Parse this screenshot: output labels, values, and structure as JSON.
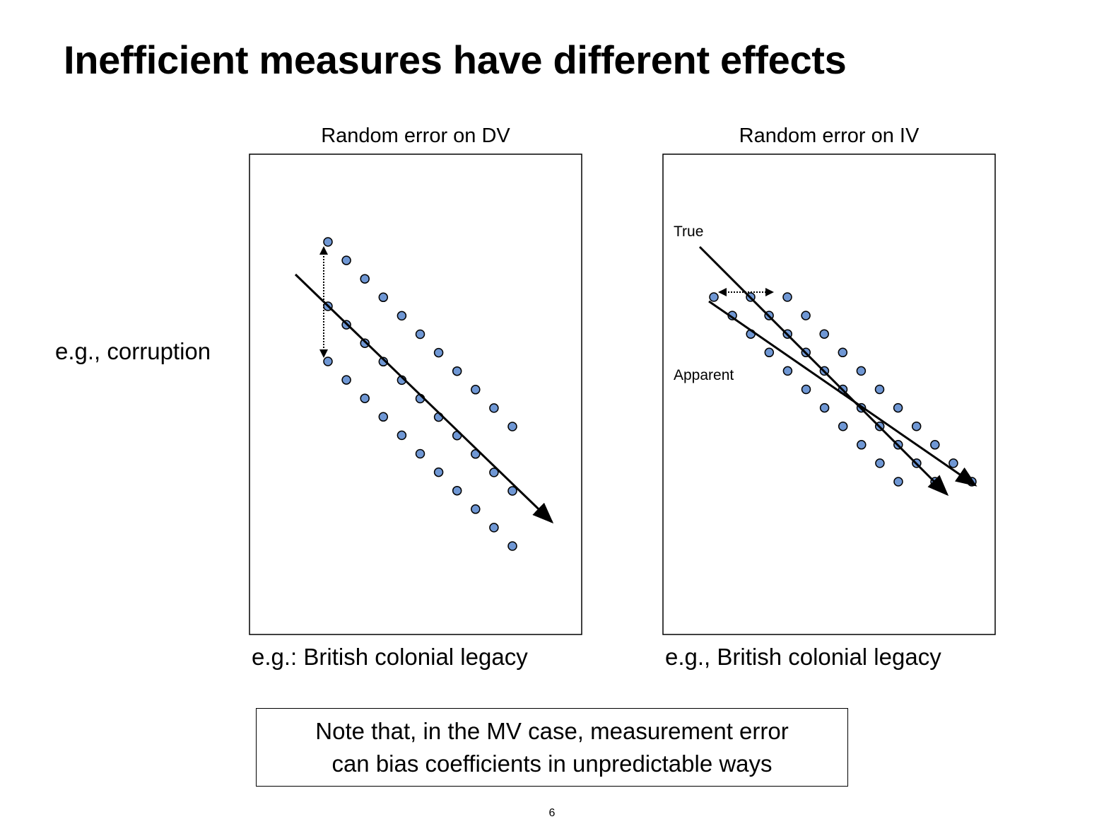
{
  "slide": {
    "title": "Inefficient measures have different effects",
    "page_number": "6"
  },
  "y_axis_label": "e.g., corruption",
  "left_panel": {
    "title": "Random error on DV",
    "x_label": "e.g.:  British colonial legacy"
  },
  "right_panel": {
    "title": "Random error on IV",
    "x_label": "e.g., British colonial legacy",
    "true_label": "True",
    "apparent_label": "Apparent"
  },
  "note": {
    "line1": "Note that, in the MV case, measurement error",
    "line2": "can bias coefficients in unpredictable ways"
  },
  "colors": {
    "dot_fill": "#6f97d4",
    "stroke": "#000000"
  }
}
